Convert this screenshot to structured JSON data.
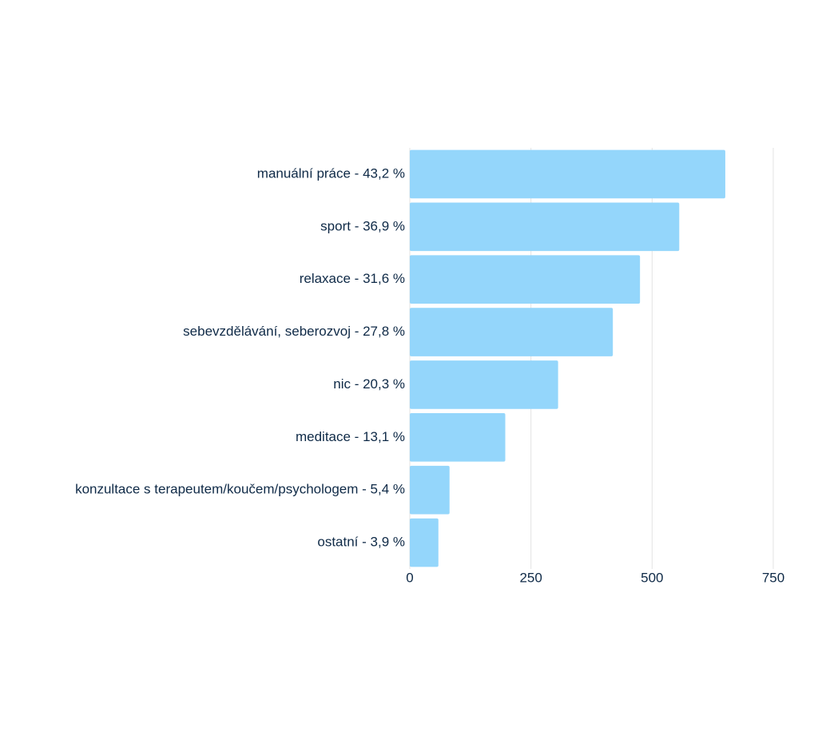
{
  "chart_data": {
    "type": "bar",
    "orientation": "horizontal",
    "categories": [
      "manuální práce - 43,2 %",
      "sport - 36,9 %",
      "relaxace - 31,6 %",
      "sebevzdělávání, seberozvoj - 27,8 %",
      "nic - 20,3 %",
      "meditace - 13,1 %",
      "konzultace s terapeutem/koučem/psychologem - 5,4 %",
      "ostatní - 3,9 %"
    ],
    "values": [
      651,
      556,
      475,
      419,
      306,
      197,
      82,
      59
    ],
    "color": "#94d6fb",
    "xlim": [
      0,
      750
    ],
    "xticks": [
      0,
      250,
      500,
      750
    ],
    "grid": true
  }
}
